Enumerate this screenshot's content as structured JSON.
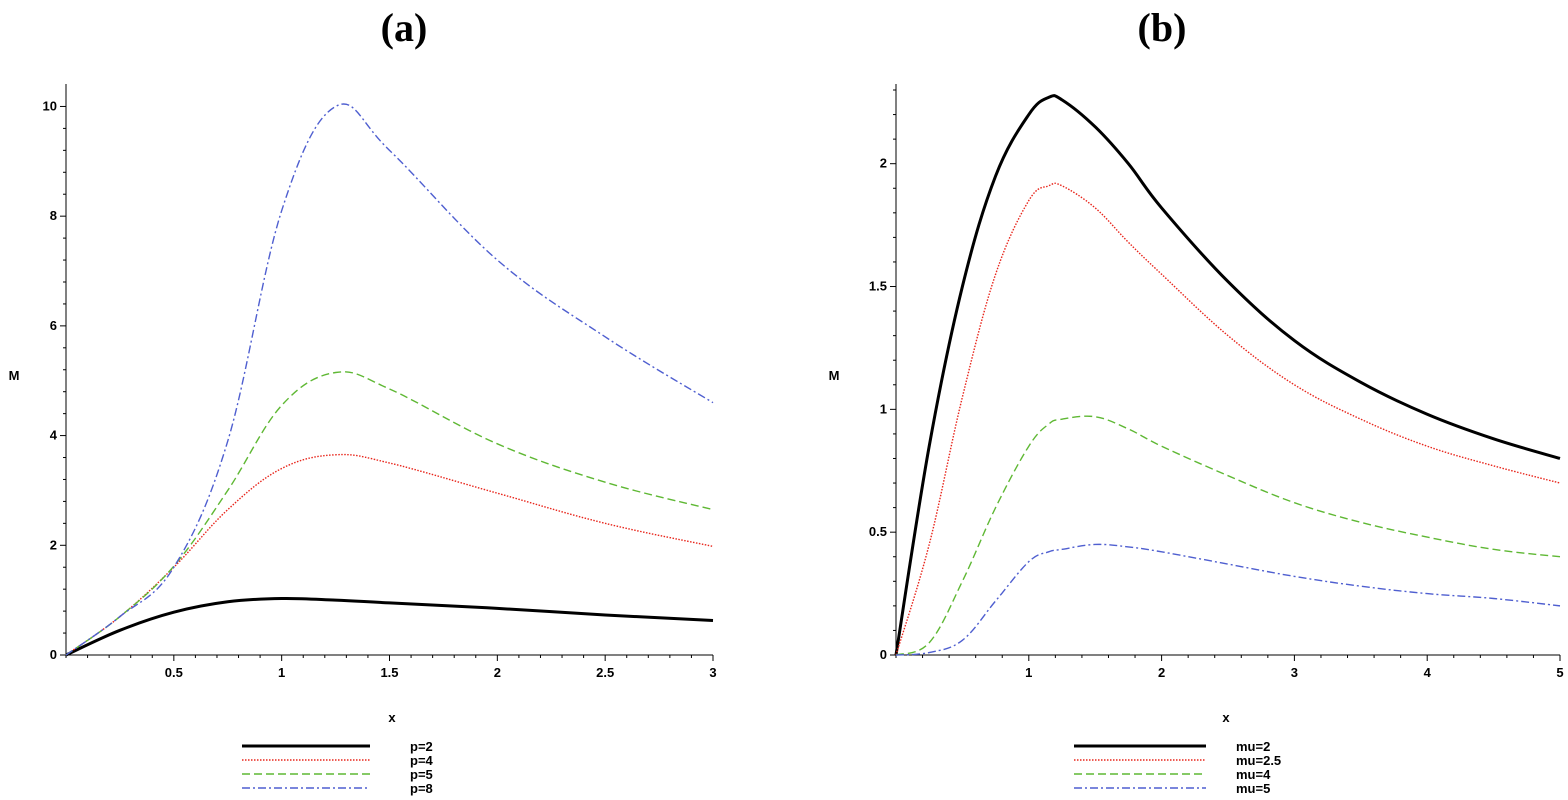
{
  "chart_data": [
    {
      "panel_label": "(a)",
      "type": "line",
      "xlabel": "x",
      "ylabel": "M",
      "xlim": [
        0,
        3
      ],
      "ylim": [
        0,
        10.3
      ],
      "x_ticks": [
        0.5,
        1,
        1.5,
        2,
        2.5,
        3
      ],
      "x_tick_labels": [
        "0.5",
        "1",
        "1.5",
        "2",
        "2.5",
        "3"
      ],
      "y_ticks": [
        0,
        2,
        4,
        6,
        8,
        10
      ],
      "y_tick_labels": [
        "0",
        "2",
        "4",
        "6",
        "8",
        "10"
      ],
      "grid": false,
      "legend_placement": "bottom",
      "x": [
        0,
        0.25,
        0.5,
        0.75,
        1,
        1.25,
        1.5,
        2,
        2.5,
        3
      ],
      "series": [
        {
          "name": "p=2",
          "color": "#000000",
          "style": "solid",
          "values": [
            0,
            0.45,
            0.78,
            0.97,
            1.03,
            1.0,
            0.95,
            0.85,
            0.73,
            0.63
          ]
        },
        {
          "name": "p=4",
          "color": "#e8261c",
          "style": "dotted",
          "values": [
            0,
            0.7,
            1.6,
            2.65,
            3.4,
            3.65,
            3.5,
            2.95,
            2.4,
            1.98
          ]
        },
        {
          "name": "p=5",
          "color": "#5fb834",
          "style": "dash",
          "values": [
            0,
            0.7,
            1.62,
            3.0,
            4.55,
            5.15,
            4.85,
            3.85,
            3.15,
            2.65
          ]
        },
        {
          "name": "p=8",
          "color": "#4f5fd0",
          "style": "dashdot",
          "values": [
            0,
            0.7,
            1.6,
            3.9,
            8.1,
            10.0,
            9.2,
            7.2,
            5.8,
            4.6
          ]
        }
      ]
    },
    {
      "panel_label": "(b)",
      "type": "line",
      "xlabel": "x",
      "ylabel": "M",
      "xlim": [
        0,
        5
      ],
      "ylim": [
        0,
        2.3
      ],
      "x_ticks": [
        1,
        2,
        3,
        4,
        5
      ],
      "x_tick_labels": [
        "1",
        "2",
        "3",
        "4",
        "5"
      ],
      "y_ticks": [
        0,
        0.5,
        1,
        1.5,
        2
      ],
      "y_tick_labels": [
        "0",
        "0.5",
        "1",
        "1.5",
        "2"
      ],
      "grid": false,
      "legend_placement": "bottom",
      "x": [
        0,
        0.25,
        0.5,
        0.75,
        1,
        1.15,
        1.25,
        1.5,
        1.75,
        2,
        2.5,
        3,
        3.5,
        4,
        4.5,
        5
      ],
      "series": [
        {
          "name": "mu=2",
          "color": "#000000",
          "style": "solid",
          "values": [
            0,
            0.85,
            1.5,
            1.95,
            2.2,
            2.27,
            2.26,
            2.15,
            2.0,
            1.82,
            1.52,
            1.28,
            1.11,
            0.98,
            0.88,
            0.8
          ]
        },
        {
          "name": "mu=2.5",
          "color": "#e8261c",
          "style": "dotted",
          "values": [
            0,
            0.45,
            1.05,
            1.55,
            1.85,
            1.91,
            1.91,
            1.82,
            1.68,
            1.55,
            1.3,
            1.1,
            0.96,
            0.85,
            0.77,
            0.7
          ]
        },
        {
          "name": "mu=4",
          "color": "#5fb834",
          "style": "dash",
          "values": [
            0,
            0.05,
            0.3,
            0.6,
            0.85,
            0.94,
            0.96,
            0.97,
            0.92,
            0.85,
            0.73,
            0.62,
            0.54,
            0.48,
            0.43,
            0.4
          ]
        },
        {
          "name": "mu=5",
          "color": "#4f5fd0",
          "style": "dashdot",
          "values": [
            0,
            0.01,
            0.06,
            0.22,
            0.38,
            0.42,
            0.43,
            0.45,
            0.44,
            0.42,
            0.37,
            0.32,
            0.28,
            0.25,
            0.23,
            0.2
          ]
        }
      ]
    }
  ]
}
